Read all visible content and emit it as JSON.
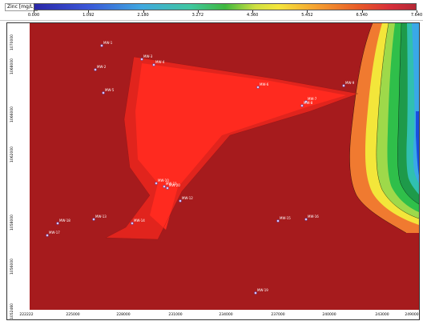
{
  "legend": {
    "title": "Zinc [mg/L]",
    "ticks": [
      "0.000",
      "1.092",
      "2.180",
      "3.272",
      "4.360",
      "5.452",
      "6.540",
      "7.640"
    ]
  },
  "map": {
    "y_ticks": [
      "1070000",
      "1068000",
      "1066000",
      "1062000",
      "1058000",
      "1056000",
      "1052460"
    ],
    "x_ticks": [
      "222222",
      "225000",
      "228000",
      "231000",
      "234000",
      "237000",
      "240000",
      "243000",
      "249000"
    ],
    "colors": {
      "background": "#a61b1d",
      "plume": "#ff2a1f",
      "plume_core": "#ff3322",
      "orange": "#f07a30",
      "yellow": "#f3e63a",
      "green_light": "#9ed94a",
      "green": "#2fbf4a",
      "green_dark": "#1e9a4a",
      "teal": "#30c0b0",
      "cyan": "#3aa8e8",
      "blue": "#1a4fe0"
    },
    "wells": [
      {
        "label": "MW-1"
      },
      {
        "label": "MW-2"
      },
      {
        "label": "MW-3"
      },
      {
        "label": "MW-4"
      },
      {
        "label": "MW-5"
      },
      {
        "label": "MW-6"
      },
      {
        "label": "MW-7"
      },
      {
        "label": "MW-8"
      },
      {
        "label": "MW-9"
      },
      {
        "label": "MW-10"
      },
      {
        "label": "MW-11"
      },
      {
        "label": "MW-12"
      },
      {
        "label": "MW-13"
      },
      {
        "label": "MW-14"
      },
      {
        "label": "MW-15"
      },
      {
        "label": "MW-16"
      },
      {
        "label": "MW-17"
      },
      {
        "label": "MW-18"
      },
      {
        "label": "MW-19"
      },
      {
        "label": "MW-20"
      }
    ]
  }
}
